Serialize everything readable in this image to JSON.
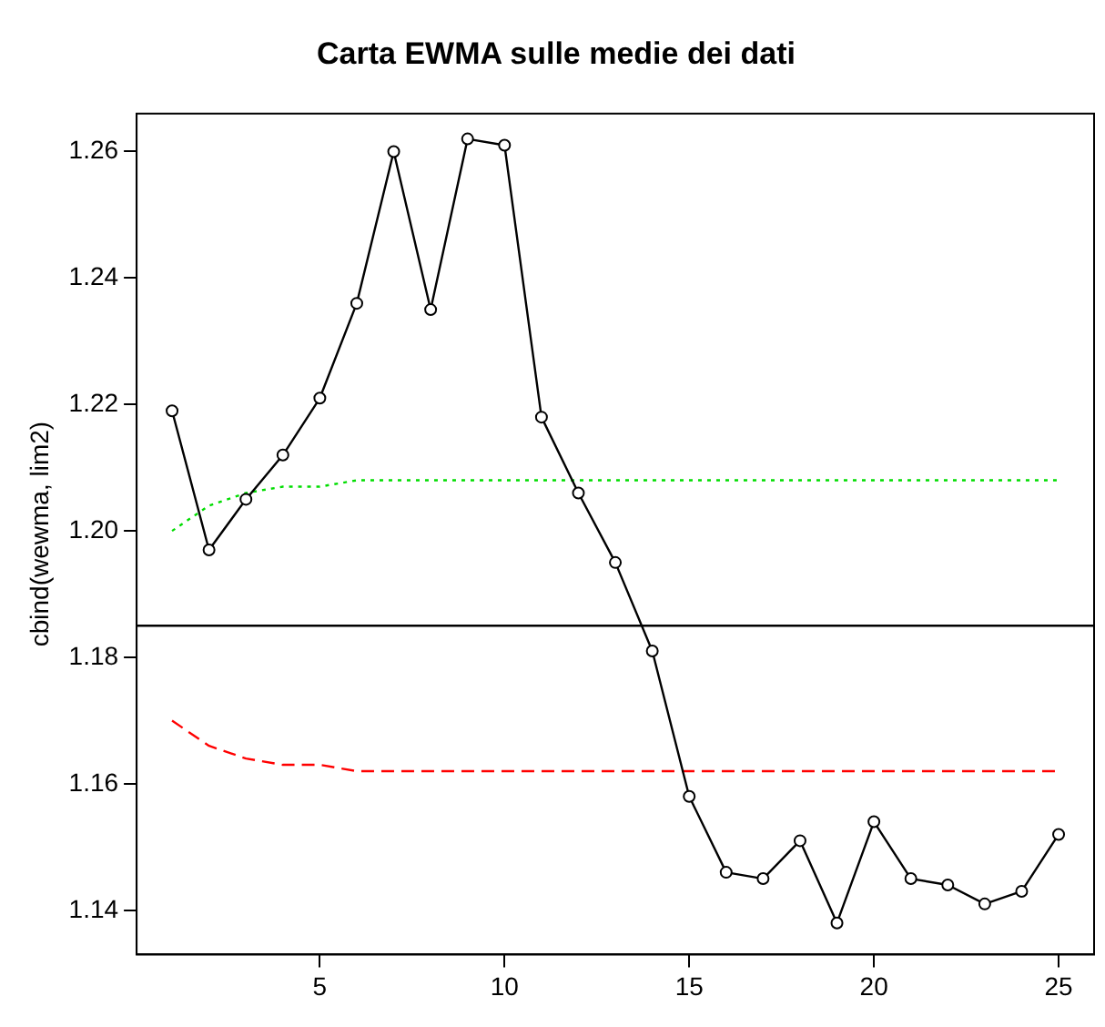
{
  "chart_data": {
    "type": "line",
    "title": "Carta EWMA sulle medie dei dati",
    "ylabel": "cbind(wewma, lim2)",
    "x": [
      1,
      2,
      3,
      4,
      5,
      6,
      7,
      8,
      9,
      10,
      11,
      12,
      13,
      14,
      15,
      16,
      17,
      18,
      19,
      20,
      21,
      22,
      23,
      24,
      25
    ],
    "series": [
      {
        "color": "#000000",
        "marker": "circle",
        "line_style": "solid",
        "values": [
          1.219,
          1.197,
          1.205,
          1.212,
          1.221,
          1.236,
          1.26,
          1.235,
          1.262,
          1.261,
          1.218,
          1.206,
          1.195,
          1.181,
          1.158,
          1.146,
          1.145,
          1.151,
          1.138,
          1.154,
          1.145,
          1.144,
          1.141,
          1.143,
          1.152
        ]
      },
      {
        "color": "#00dd00",
        "marker": "none",
        "line_style": "dotted",
        "values": [
          1.2,
          1.204,
          1.206,
          1.207,
          1.207,
          1.208,
          1.208,
          1.208,
          1.208,
          1.208,
          1.208,
          1.208,
          1.208,
          1.208,
          1.208,
          1.208,
          1.208,
          1.208,
          1.208,
          1.208,
          1.208,
          1.208,
          1.208,
          1.208,
          1.208
        ]
      },
      {
        "color": "#ff0000",
        "marker": "none",
        "line_style": "dashed",
        "values": [
          1.17,
          1.166,
          1.164,
          1.163,
          1.163,
          1.162,
          1.162,
          1.162,
          1.162,
          1.162,
          1.162,
          1.162,
          1.162,
          1.162,
          1.162,
          1.162,
          1.162,
          1.162,
          1.162,
          1.162,
          1.162,
          1.162,
          1.162,
          1.162,
          1.162
        ]
      }
    ],
    "ref_lines": [
      {
        "axis": "y",
        "value": 1.185,
        "color": "#000000"
      }
    ],
    "xlim": [
      0.04,
      25.96
    ],
    "xticks": [
      5,
      10,
      15,
      20,
      25
    ],
    "ylim": [
      1.133,
      1.266
    ],
    "yticks": [
      1.14,
      1.16,
      1.18,
      {
        "value": 1.2,
        "label": "1.20"
      },
      1.22,
      1.24,
      1.26
    ],
    "grid": false,
    "legend": false
  }
}
